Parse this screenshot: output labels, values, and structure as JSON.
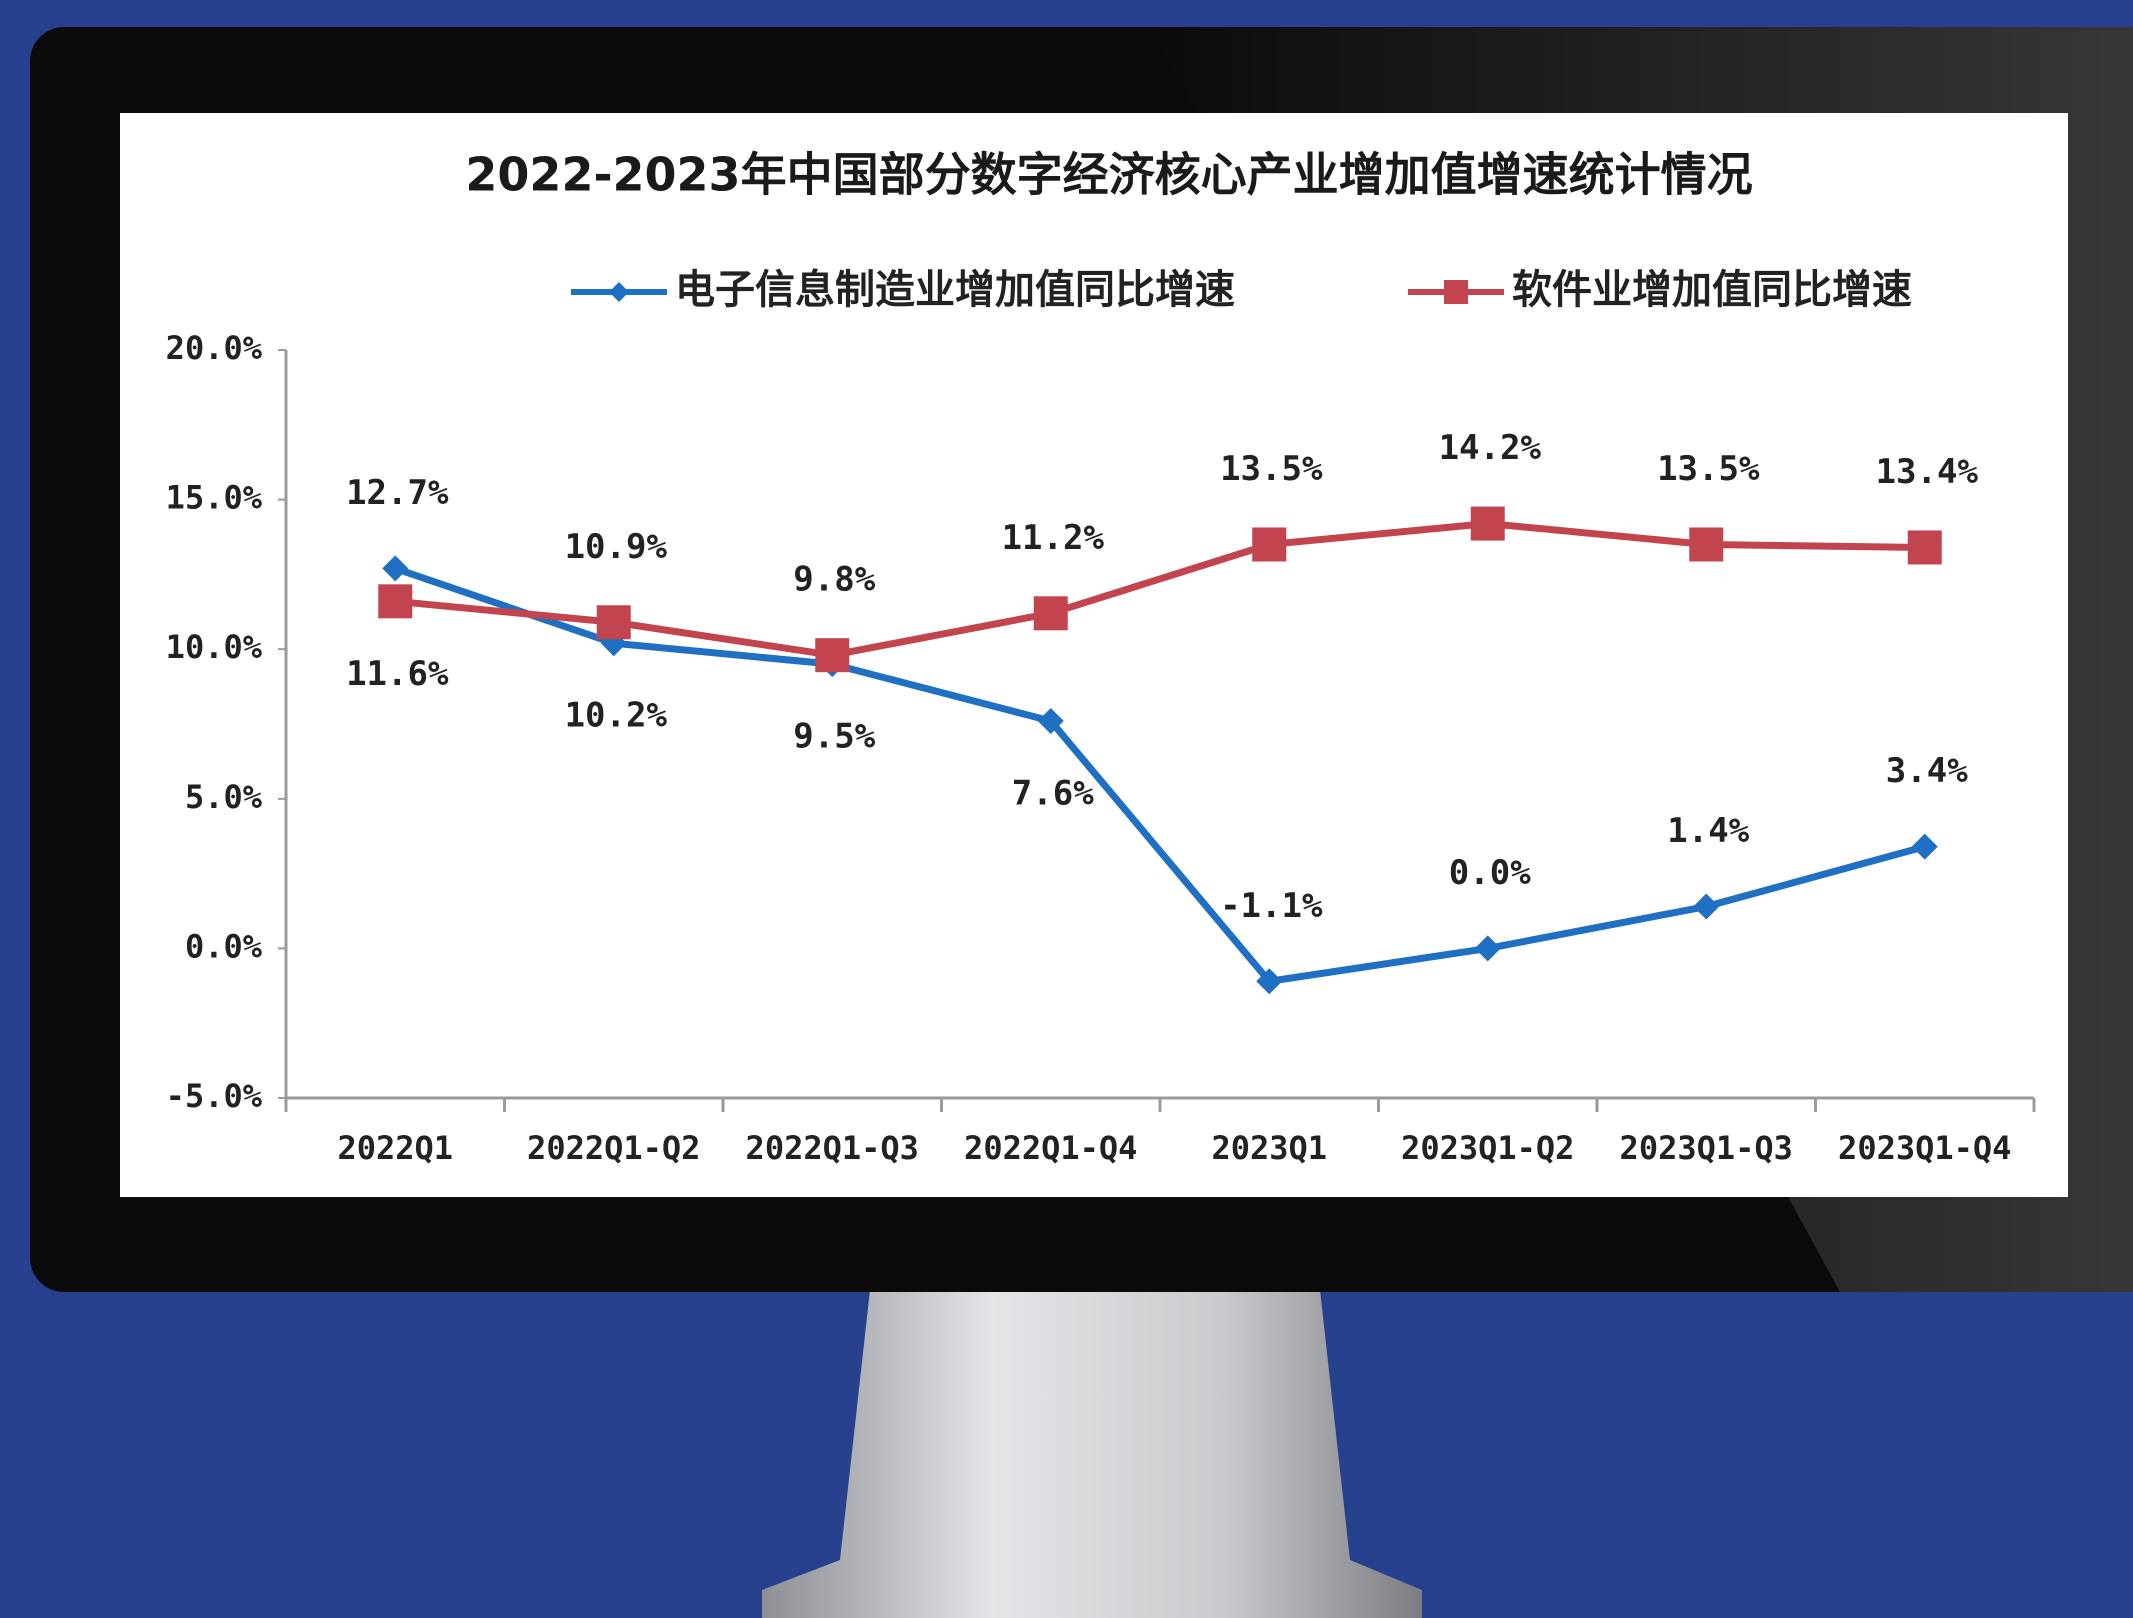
{
  "chart_data": {
    "type": "line",
    "title": "2022-2023年中国部分数字经济核心产业增加值增速统计情况",
    "categories": [
      "2022Q1",
      "2022Q1-Q2",
      "2022Q1-Q3",
      "2022Q1-Q4",
      "2023Q1",
      "2023Q1-Q2",
      "2023Q1-Q3",
      "2023Q1-Q4"
    ],
    "series": [
      {
        "name": "电子信息制造业增加值同比增速",
        "color": "#1f6fc2",
        "marker": "diamond",
        "values": [
          12.7,
          10.2,
          9.5,
          7.6,
          -1.1,
          0.0,
          1.4,
          3.4
        ],
        "value_labels": [
          "12.7%",
          "10.2%",
          "9.5%",
          "7.6%",
          "-1.1%",
          "0.0%",
          "1.4%",
          "3.4%"
        ]
      },
      {
        "name": "软件业增加值同比增速",
        "color": "#c1444f",
        "marker": "square",
        "values": [
          11.6,
          10.9,
          9.8,
          11.2,
          13.5,
          14.2,
          13.5,
          13.4
        ],
        "value_labels": [
          "11.6%",
          "10.9%",
          "9.8%",
          "11.2%",
          "13.5%",
          "14.2%",
          "13.5%",
          "13.4%"
        ]
      }
    ],
    "ylim": [
      -5,
      20
    ],
    "yticks": [
      {
        "value": -5,
        "label": "-5.0%"
      },
      {
        "value": 0,
        "label": "0.0%"
      },
      {
        "value": 5,
        "label": "5.0%"
      },
      {
        "value": 10,
        "label": "10.0%"
      },
      {
        "value": 15,
        "label": "15.0%"
      },
      {
        "value": 20,
        "label": "20.0%"
      }
    ],
    "grid": false,
    "legend": "top"
  }
}
